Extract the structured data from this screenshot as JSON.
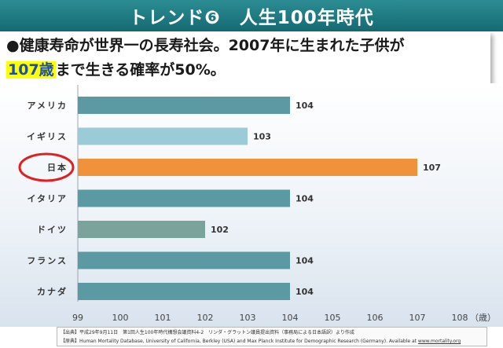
{
  "slide": {
    "title": "トレンド❻　人生100年時代"
  },
  "headline": {
    "line1": "●健康寿命が世界一の長寿社会。2007年に生まれた子供が",
    "line2_highlight": "107歳",
    "line2_rest": "まで生きる確率が50%。"
  },
  "colors": {
    "title_bar": "#1f7a82",
    "bar_default": "#5b9aa3",
    "bar_uk": "#9ccbd8",
    "bar_japan": "#f0923a",
    "bar_germany": "#7aa39b",
    "japan_circle": "#e02020"
  },
  "chart_data": {
    "type": "bar",
    "orientation": "horizontal",
    "categories": [
      "アメリカ",
      "イギリス",
      "日本",
      "イタリア",
      "ドイツ",
      "フランス",
      "カナダ"
    ],
    "values": [
      104,
      103,
      107,
      104,
      102,
      104,
      104
    ],
    "data_labels": [
      "104",
      "103",
      "107",
      "104",
      "102",
      "104",
      "104"
    ],
    "xlim": [
      99,
      108
    ],
    "xticks": [
      "99",
      "100",
      "101",
      "102",
      "103",
      "104",
      "105",
      "106",
      "107",
      "108"
    ],
    "xunit": "（歳）",
    "highlight_category": "日本"
  },
  "source": {
    "line1": "【出典】平成29年9月11日　第1回人生100年時代構想会議資料4-2　リンダ・グラットン議員提出資料（事務局による日本語訳）より作成",
    "line2_prefix": "【原典】Human Mortality Database, University of California, Berkley (USA) and Max Planck Institute for Demographic Research (Germany). Available at ",
    "line2_link": "www.mortality.org"
  }
}
